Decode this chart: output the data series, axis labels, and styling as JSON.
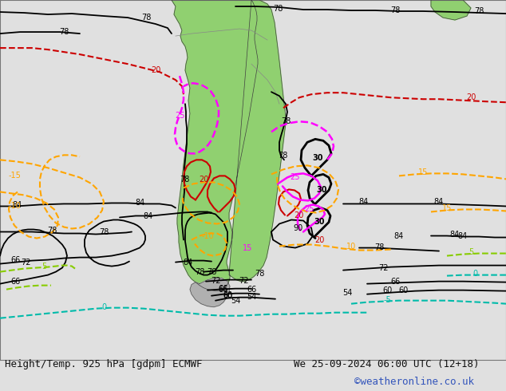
{
  "title_left": "Height/Temp. 925 hPa [gdpm] ECMWF",
  "title_right": "We 25-09-2024 06:00 UTC (12+18)",
  "copyright": "©weatheronline.co.uk",
  "bg_color": "#e0e0e0",
  "ocean_color": "#e0e0e0",
  "land_color": "#90d070",
  "gray_land_color": "#b0b0b0",
  "text_color": "#111111",
  "title_fontsize": 9,
  "copyright_color": "#3355bb",
  "figsize": [
    6.34,
    4.9
  ],
  "dpi": 100
}
